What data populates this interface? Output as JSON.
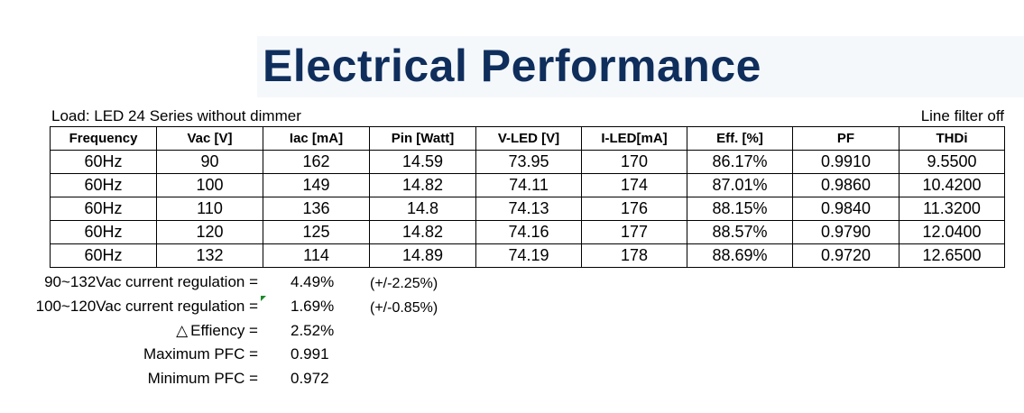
{
  "title": "Electrical Performance",
  "load_label": "Load: LED 24 Series without dimmer",
  "filter_label": "Line filter off",
  "table": {
    "headers": [
      "Frequency",
      "Vac [V]",
      "Iac [mA]",
      "Pin [Watt]",
      "V-LED [V]",
      "I-LED[mA]",
      "Eff. [%]",
      "PF",
      "THDi"
    ],
    "rows": [
      [
        "60Hz",
        "90",
        "162",
        "14.59",
        "73.95",
        "170",
        "86.17%",
        "0.9910",
        "9.5500"
      ],
      [
        "60Hz",
        "100",
        "149",
        "14.82",
        "74.11",
        "174",
        "87.01%",
        "0.9860",
        "10.4200"
      ],
      [
        "60Hz",
        "110",
        "136",
        "14.8",
        "74.13",
        "176",
        "88.15%",
        "0.9840",
        "11.3200"
      ],
      [
        "60Hz",
        "120",
        "125",
        "14.82",
        "74.16",
        "177",
        "88.57%",
        "0.9790",
        "12.0400"
      ],
      [
        "60Hz",
        "132",
        "114",
        "14.89",
        "74.19",
        "178",
        "88.69%",
        "0.9720",
        "12.6500"
      ]
    ]
  },
  "summary": [
    {
      "label": "90~132Vac current regulation =",
      "value": "4.49%",
      "note": "(+/-2.25%)"
    },
    {
      "label": "100~120Vac current regulation =",
      "value": "1.69%",
      "note": "(+/-0.85%)"
    },
    {
      "label": "Effiency =",
      "symbol": "△",
      "value": "2.52%",
      "note": ""
    },
    {
      "label": "Maximum PFC =",
      "value": "0.991",
      "note": ""
    },
    {
      "label": "Minimum PFC =",
      "value": "0.972",
      "note": ""
    }
  ]
}
